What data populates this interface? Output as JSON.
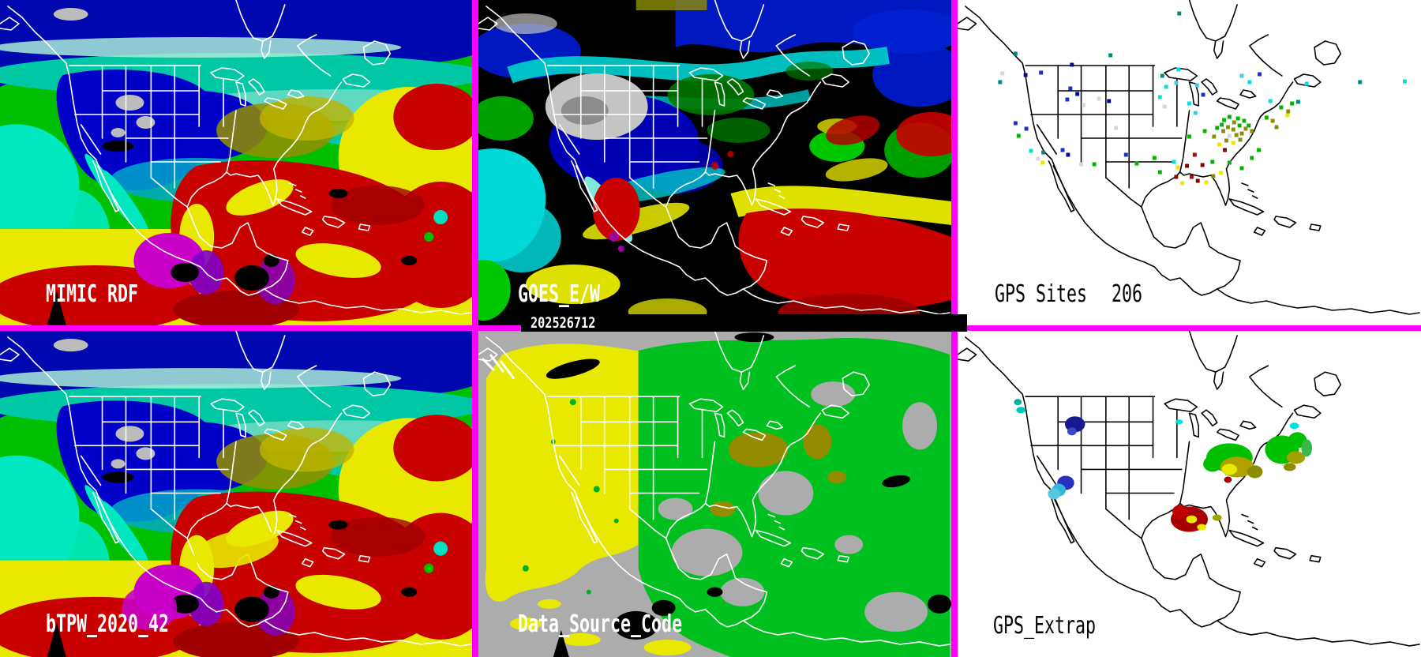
{
  "window": {
    "title": "MIMIC TPW six-panel product display"
  },
  "palette": {
    "border_magenta": "#FF00FF",
    "label_on_map": "#FFFFFF",
    "label_on_white": "#000000",
    "timebar_bg": "#000000",
    "tpw_colors": {
      "navy": "#0008B0",
      "blue": "#0000C8",
      "teal": "#00C8A4",
      "mint": "#A8ECD8",
      "cyan": "#00E8C8",
      "green": "#00BE00",
      "olive": "#949000",
      "yellow": "#E8E800",
      "red": "#C80000",
      "dark_red": "#A00000",
      "magenta": "#C800C8",
      "purple": "#8000C8",
      "cloud": "#BCBCBC"
    },
    "data_source_colors": {
      "gray": "#ACACAC",
      "yellow": "#E8E800",
      "green": "#00C020",
      "olive": "#948C00",
      "black": "#000000"
    }
  },
  "panels": {
    "mimic": {
      "label": "MIMIC RDF"
    },
    "goes": {
      "label": "GOES_E/W",
      "timestamp": "202526712"
    },
    "gps_sites": {
      "label": "GPS Sites",
      "count": "206",
      "dots": [
        [
          75,
          68,
          "#008878"
        ],
        [
          88,
          95,
          "#000890"
        ],
        [
          58,
          93,
          "#D8D8D8"
        ],
        [
          55,
          104,
          "#008878"
        ],
        [
          148,
          82,
          "#000890"
        ],
        [
          108,
          92,
          "#1830D0"
        ],
        [
          146,
          112,
          "#1830D0"
        ],
        [
          155,
          119,
          "#000890"
        ],
        [
          142,
          126,
          "#1830D0"
        ],
        [
          183,
          125,
          "#D8D8D8"
        ],
        [
          196,
          128,
          "#000890"
        ],
        [
          163,
          133,
          "#D8D8D8"
        ],
        [
          75,
          156,
          "#1830D0"
        ],
        [
          89,
          163,
          "#1830D0"
        ],
        [
          79,
          172,
          "#00B400"
        ],
        [
          95,
          191,
          "#00E0E0"
        ],
        [
          111,
          193,
          "#008878"
        ],
        [
          136,
          190,
          "#1830D0"
        ],
        [
          143,
          196,
          "#000890"
        ],
        [
          104,
          201,
          "#D8D8D8"
        ],
        [
          160,
          208,
          "#D8D8D8"
        ],
        [
          177,
          208,
          "#00B400"
        ],
        [
          110,
          206,
          "#E8E800"
        ],
        [
          218,
          196,
          "#1830D0"
        ],
        [
          232,
          207,
          "#00B400"
        ],
        [
          205,
          162,
          "#D8D8D8"
        ],
        [
          198,
          70,
          "#008878"
        ],
        [
          265,
          96,
          "#008878"
        ],
        [
          270,
          110,
          "#00E0E0"
        ],
        [
          283,
          105,
          "#40C8E8"
        ],
        [
          262,
          123,
          "#00E0E0"
        ],
        [
          300,
          131,
          "#00E0E0"
        ],
        [
          308,
          143,
          "#40C8E8"
        ],
        [
          268,
          135,
          "#D8D8D8"
        ],
        [
          318,
          120,
          "#1830D0"
        ],
        [
          320,
          166,
          "#00B400"
        ],
        [
          286,
          88,
          "#00E0E0"
        ],
        [
          310,
          108,
          "#40C8E8"
        ],
        [
          255,
          200,
          "#00B400"
        ],
        [
          280,
          205,
          "#00E0E0"
        ],
        [
          300,
          173,
          "#00B400"
        ],
        [
          262,
          218,
          "#00B400"
        ],
        [
          285,
          212,
          "#E8E800"
        ],
        [
          283,
          224,
          "#880000"
        ],
        [
          297,
          210,
          "#880000"
        ],
        [
          303,
          224,
          "#C00000"
        ],
        [
          291,
          232,
          "#E8E800"
        ],
        [
          311,
          229,
          "#880000"
        ],
        [
          322,
          231,
          "#E8E800"
        ],
        [
          331,
          223,
          "#8C8C00"
        ],
        [
          341,
          219,
          "#E8E800"
        ],
        [
          317,
          209,
          "#880000"
        ],
        [
          307,
          196,
          "#C00000"
        ],
        [
          330,
          205,
          "#00B400"
        ],
        [
          345,
          152,
          "#00B400"
        ],
        [
          352,
          148,
          "#00B400"
        ],
        [
          358,
          155,
          "#8C8C00"
        ],
        [
          363,
          150,
          "#00B400"
        ],
        [
          350,
          161,
          "#8C8C00"
        ],
        [
          357,
          164,
          "#8C8C00"
        ],
        [
          344,
          166,
          "#8C8C00"
        ],
        [
          365,
          159,
          "#00B400"
        ],
        [
          371,
          153,
          "#00B400"
        ],
        [
          373,
          163,
          "#8C8C00"
        ],
        [
          352,
          172,
          "#D8D8D8"
        ],
        [
          361,
          171,
          "#8C8C00"
        ],
        [
          342,
          158,
          "#00B400"
        ],
        [
          368,
          169,
          "#8C8C00"
        ],
        [
          377,
          159,
          "#00B400"
        ],
        [
          381,
          166,
          "#8C8C00"
        ],
        [
          336,
          162,
          "#00B400"
        ],
        [
          348,
          178,
          "#8C8C00"
        ],
        [
          357,
          181,
          "#E8E800"
        ],
        [
          366,
          177,
          "#8C8C00"
        ],
        [
          346,
          190,
          "#880000"
        ],
        [
          332,
          173,
          "#8C8C00"
        ],
        [
          339,
          183,
          "#E8E800"
        ],
        [
          400,
          149,
          "#00B400"
        ],
        [
          408,
          153,
          "#8C8C00"
        ],
        [
          413,
          161,
          "#8C8C00"
        ],
        [
          405,
          128,
          "#00E0E0"
        ],
        [
          419,
          136,
          "#00B400"
        ],
        [
          428,
          141,
          "#8C8C00"
        ],
        [
          427,
          146,
          "#E8E800"
        ],
        [
          433,
          131,
          "#00B400"
        ],
        [
          441,
          129,
          "#008878"
        ],
        [
          452,
          106,
          "#00E0E0"
        ],
        [
          521,
          104,
          "#008878"
        ],
        [
          579,
          103,
          "#00E0E0"
        ],
        [
          287,
          17,
          "#008878"
        ],
        [
          391,
          94,
          "#1830D0"
        ],
        [
          378,
          104,
          "#00E0E0"
        ],
        [
          368,
          96,
          "#40C8E8"
        ],
        [
          352,
          206,
          "#00B400"
        ],
        [
          368,
          213,
          "#00B400"
        ],
        [
          381,
          200,
          "#00B400"
        ],
        [
          390,
          190,
          "#00B400"
        ]
      ]
    },
    "btpw": {
      "label": "bTPW_2020_42"
    },
    "data_source": {
      "label": "Data_Source_Code"
    },
    "gps_extrap": {
      "label": "GPS_Extrap",
      "blobs": [
        [
          152,
          118,
          13,
          10,
          "#181890"
        ],
        [
          148,
          127,
          6,
          5,
          "#3848C8"
        ],
        [
          78,
          90,
          5,
          4,
          "#00B0A0"
        ],
        [
          82,
          100,
          6,
          4,
          "#00C8B8"
        ],
        [
          140,
          192,
          11,
          9,
          "#2830C0"
        ],
        [
          131,
          201,
          9,
          8,
          "#30B8D8"
        ],
        [
          125,
          206,
          8,
          7,
          "#58C8E0"
        ],
        [
          287,
          115,
          5,
          3,
          "#00E0E0"
        ],
        [
          352,
          160,
          30,
          18,
          "#00C000"
        ],
        [
          330,
          168,
          12,
          10,
          "#00C000"
        ],
        [
          362,
          172,
          22,
          13,
          "#B0A000"
        ],
        [
          352,
          175,
          10,
          7,
          "#E8E800"
        ],
        [
          350,
          188,
          5,
          4,
          "#A00000"
        ],
        [
          385,
          178,
          10,
          8,
          "#8C8C00"
        ],
        [
          420,
          150,
          22,
          18,
          "#00C000"
        ],
        [
          440,
          138,
          12,
          10,
          "#00C000"
        ],
        [
          438,
          160,
          12,
          8,
          "#A0A000"
        ],
        [
          436,
          120,
          6,
          4,
          "#00E0E0"
        ],
        [
          452,
          148,
          7,
          11,
          "#38B848"
        ],
        [
          430,
          172,
          8,
          5,
          "#8C8C00"
        ],
        [
          300,
          238,
          24,
          16,
          "#A80000"
        ],
        [
          288,
          228,
          10,
          8,
          "#C00000"
        ],
        [
          303,
          238,
          7,
          5,
          "#E8E800"
        ],
        [
          316,
          248,
          6,
          4,
          "#E8E800"
        ],
        [
          336,
          236,
          6,
          4,
          "#A0A000"
        ]
      ]
    }
  }
}
